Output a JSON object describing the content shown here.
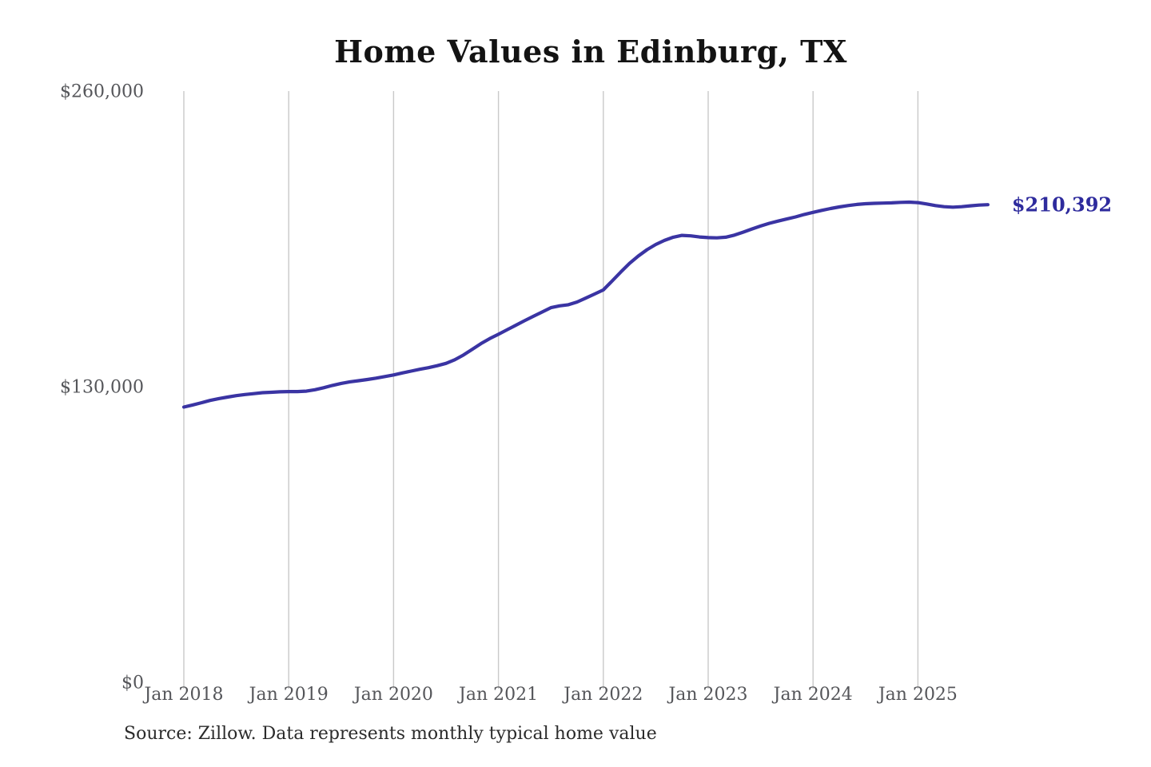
{
  "title": "Home Values in Edinburg, TX",
  "source_note": "Source: Zillow. Data represents monthly typical home value",
  "colors": {
    "line": "#3a34a3",
    "end_label": "#2e2b9d",
    "gridline": "#c9c9c9",
    "tick_text": "#55565a",
    "title_text": "#131313",
    "source_text": "#2b2b2b",
    "background": "#ffffff"
  },
  "chart_data": {
    "type": "line",
    "title": "Home Values in Edinburg, TX",
    "grid": "vertical-only",
    "legend": "none",
    "ylim": [
      0,
      260000
    ],
    "y_ticks": [
      {
        "label": "$0",
        "value": 0
      },
      {
        "label": "$130,000",
        "value": 130000
      },
      {
        "label": "$260,000",
        "value": 260000
      }
    ],
    "x_tick_labels": [
      "Jan 2018",
      "Jan 2019",
      "Jan 2020",
      "Jan 2021",
      "Jan 2022",
      "Jan 2023",
      "Jan 2024",
      "Jan 2025"
    ],
    "x_start_month": "2018-01",
    "x_end_month": "2025-09",
    "end_value": 210392,
    "end_value_label": "$210,392",
    "series": [
      {
        "name": "Monthly typical home value",
        "monthly_values": [
          121400,
          122300,
          123300,
          124300,
          125100,
          125800,
          126400,
          126900,
          127300,
          127700,
          127900,
          128100,
          128200,
          128200,
          128400,
          129000,
          129900,
          130900,
          131800,
          132500,
          133000,
          133500,
          134100,
          134800,
          135500,
          136400,
          137200,
          138000,
          138700,
          139600,
          140600,
          142200,
          144300,
          146800,
          149300,
          151500,
          153400,
          155400,
          157400,
          159400,
          161300,
          163200,
          165100,
          165900,
          166400,
          167600,
          169300,
          171100,
          172900,
          176800,
          180800,
          184600,
          187800,
          190600,
          192900,
          194700,
          196100,
          196900,
          196700,
          196200,
          195900,
          195800,
          196100,
          197000,
          198300,
          199700,
          201000,
          202200,
          203200,
          204100,
          205000,
          206100,
          207000,
          207900,
          208700,
          209400,
          210000,
          210500,
          210800,
          211000,
          211100,
          211200,
          211400,
          211500,
          211300,
          210700,
          210000,
          209500,
          209300,
          209500,
          209900,
          210200,
          210392
        ]
      }
    ]
  }
}
